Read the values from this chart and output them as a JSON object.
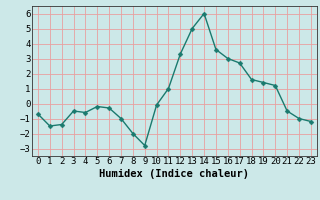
{
  "x": [
    0,
    1,
    2,
    3,
    4,
    5,
    6,
    7,
    8,
    9,
    10,
    11,
    12,
    13,
    14,
    15,
    16,
    17,
    18,
    19,
    20,
    21,
    22,
    23
  ],
  "y": [
    -0.7,
    -1.5,
    -1.4,
    -0.5,
    -0.6,
    -0.2,
    -0.3,
    -1.0,
    -2.0,
    -2.8,
    -0.1,
    1.0,
    3.3,
    5.0,
    6.0,
    3.6,
    3.0,
    2.7,
    1.6,
    1.4,
    1.2,
    -0.5,
    -1.0,
    -1.2
  ],
  "line_color": "#1a7a6e",
  "marker": "D",
  "marker_size": 2.5,
  "bg_color": "#cce8e8",
  "grid_color": "#e8a0a0",
  "xlabel": "Humidex (Indice chaleur)",
  "ylim": [
    -3.5,
    6.5
  ],
  "xlim": [
    -0.5,
    23.5
  ],
  "yticks": [
    -3,
    -2,
    -1,
    0,
    1,
    2,
    3,
    4,
    5,
    6
  ],
  "xticks": [
    0,
    1,
    2,
    3,
    4,
    5,
    6,
    7,
    8,
    9,
    10,
    11,
    12,
    13,
    14,
    15,
    16,
    17,
    18,
    19,
    20,
    21,
    22,
    23
  ],
  "font_color": "#000000",
  "xlabel_fontsize": 7.5,
  "tick_fontsize": 6.5,
  "line_width": 1.0
}
